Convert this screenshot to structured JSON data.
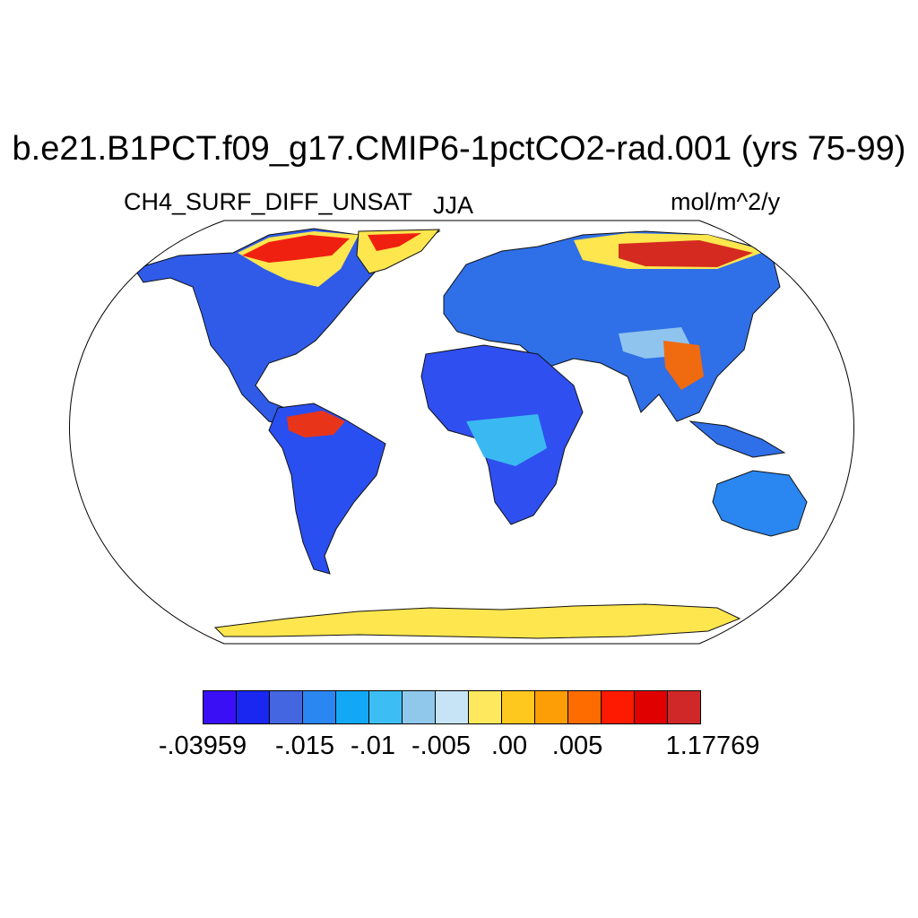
{
  "header": {
    "title": "b.e21.B1PCT.f09_g17.CMIP6-1pctCO2-rad.001 (yrs 75-99)",
    "variable": "CH4_SURF_DIFF_UNSAT",
    "season": "JJA",
    "units": "mol/m^2/y"
  },
  "colorbar": {
    "colors": [
      "#3a0ff5",
      "#1a27f0",
      "#4466e0",
      "#2a86f0",
      "#12a8f5",
      "#3cbef5",
      "#90c8ec",
      "#c6e4f6",
      "#fee85e",
      "#fec81e",
      "#fe9e06",
      "#fe6c00",
      "#fc1a00",
      "#e00000",
      "#d02828"
    ],
    "tick_labels": [
      "-.03959",
      "-.015",
      "-.01",
      "-.005",
      ".00",
      ".005",
      "1.17769"
    ]
  },
  "map": {
    "projection": "Robinson",
    "region": "global land",
    "dominant_value_color": "#2563eb",
    "hotspots": [
      "Siberia",
      "northern Canada",
      "Amazon basin",
      "Tibetan Plateau",
      "Southeast Asia",
      "Antarctic coast"
    ]
  }
}
